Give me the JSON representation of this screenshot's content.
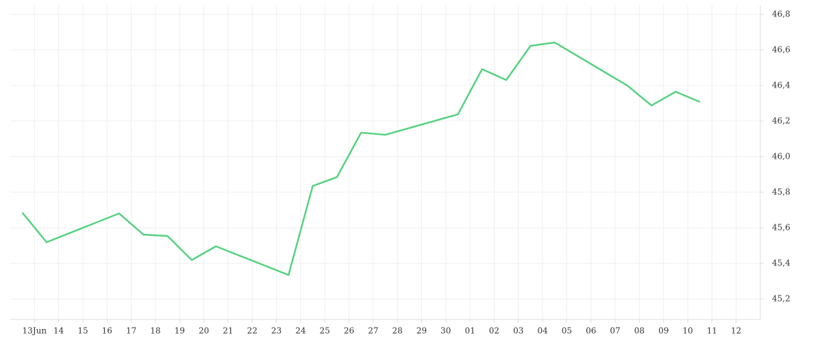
{
  "chart_data": {
    "type": "line",
    "x": [
      -0.5,
      0.5,
      3.5,
      4.5,
      5.5,
      6.5,
      7.5,
      10.5,
      11.5,
      12.5,
      13.5,
      14.5,
      17.5,
      18.5,
      19.5,
      20.5,
      21.5,
      24.5,
      25.5,
      26.5,
      27.5
    ],
    "values": [
      45.685,
      45.519,
      45.681,
      45.562,
      45.554,
      45.419,
      45.496,
      45.335,
      45.835,
      45.885,
      46.135,
      46.123,
      46.238,
      46.492,
      46.431,
      46.623,
      46.642,
      46.4,
      46.288,
      46.365,
      46.308
    ],
    "color": "#55d17f",
    "xlim": [
      -1,
      30
    ],
    "xticks": [
      {
        "value": 0,
        "label": "13Jun"
      },
      {
        "value": 1,
        "label": "14"
      },
      {
        "value": 2,
        "label": "15"
      },
      {
        "value": 3,
        "label": "16"
      },
      {
        "value": 4,
        "label": "17"
      },
      {
        "value": 5,
        "label": "18"
      },
      {
        "value": 6,
        "label": "19"
      },
      {
        "value": 7,
        "label": "20"
      },
      {
        "value": 8,
        "label": "21"
      },
      {
        "value": 9,
        "label": "22"
      },
      {
        "value": 10,
        "label": "23"
      },
      {
        "value": 11,
        "label": "24"
      },
      {
        "value": 12,
        "label": "25"
      },
      {
        "value": 13,
        "label": "26"
      },
      {
        "value": 14,
        "label": "27"
      },
      {
        "value": 15,
        "label": "28"
      },
      {
        "value": 16,
        "label": "29"
      },
      {
        "value": 17,
        "label": "30"
      },
      {
        "value": 18,
        "label": "01"
      },
      {
        "value": 19,
        "label": "02"
      },
      {
        "value": 20,
        "label": "03"
      },
      {
        "value": 21,
        "label": "04"
      },
      {
        "value": 22,
        "label": "05"
      },
      {
        "value": 23,
        "label": "06"
      },
      {
        "value": 24,
        "label": "07"
      },
      {
        "value": 25,
        "label": "08"
      },
      {
        "value": 26,
        "label": "09"
      },
      {
        "value": 27,
        "label": "10"
      },
      {
        "value": 28,
        "label": "11"
      },
      {
        "value": 29,
        "label": "12"
      }
    ],
    "ylim": [
      45.085,
      46.85
    ],
    "yticks": [
      {
        "value": 45.2,
        "label": "45,2"
      },
      {
        "value": 45.4,
        "label": "45,4"
      },
      {
        "value": 45.6,
        "label": "45,6"
      },
      {
        "value": 45.8,
        "label": "45,8"
      },
      {
        "value": 46.0,
        "label": "46,0"
      },
      {
        "value": 46.2,
        "label": "46,2"
      },
      {
        "value": 46.4,
        "label": "46,4"
      },
      {
        "value": 46.6,
        "label": "46,6"
      },
      {
        "value": 46.8,
        "label": "46,8"
      }
    ],
    "grid": true
  }
}
